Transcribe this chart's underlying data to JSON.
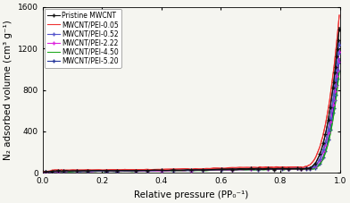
{
  "title": "",
  "xlabel": "Relative pressure (PP₀⁻¹)",
  "ylabel": "N₂ adsorbed volume (cm³ g⁻¹)",
  "xlim": [
    0.0,
    1.0
  ],
  "ylim": [
    0,
    1600
  ],
  "yticks": [
    0,
    400,
    800,
    1200,
    1600
  ],
  "xticks": [
    0.0,
    0.2,
    0.4,
    0.6,
    0.8,
    1.0
  ],
  "series": [
    {
      "label": "Pristine MWCNT",
      "color": "#111111",
      "linestyle": "-",
      "marker": "+",
      "markersize": 3,
      "linewidth": 0.8,
      "zorder": 6,
      "final_val": 1400,
      "base": 20,
      "mid": 40,
      "upturn": 0.88
    },
    {
      "label": "MWCNT/PEI-0.05",
      "color": "#ee3333",
      "linestyle": "-",
      "marker": "None",
      "markersize": 2,
      "linewidth": 0.8,
      "zorder": 5,
      "final_val": 1520,
      "base": 28,
      "mid": 55,
      "upturn": 0.87
    },
    {
      "label": "MWCNT/PEI-0.52",
      "color": "#5555cc",
      "linestyle": "-",
      "marker": "+",
      "markersize": 3,
      "linewidth": 0.8,
      "zorder": 4,
      "final_val": 1260,
      "base": 18,
      "mid": 45,
      "upturn": 0.89
    },
    {
      "label": "MWCNT/PEI-2.22",
      "color": "#dd22dd",
      "linestyle": "-",
      "marker": "+",
      "markersize": 3,
      "linewidth": 0.8,
      "zorder": 3,
      "final_val": 1180,
      "base": 16,
      "mid": 42,
      "upturn": 0.89
    },
    {
      "label": "MWCNT/PEI-4.50",
      "color": "#22aa22",
      "linestyle": "-",
      "marker": "None",
      "markersize": 2,
      "linewidth": 0.8,
      "zorder": 2,
      "final_val": 980,
      "base": 14,
      "mid": 38,
      "upturn": 0.9
    },
    {
      "label": "MWCNT/PEI-5.20",
      "color": "#223399",
      "linestyle": "-",
      "marker": "+",
      "markersize": 3,
      "linewidth": 0.8,
      "zorder": 1,
      "final_val": 1100,
      "base": 15,
      "mid": 40,
      "upturn": 0.9
    }
  ],
  "legend_fontsize": 5.5,
  "axis_fontsize": 7.5,
  "tick_fontsize": 6.5,
  "background_color": "#f5f5f0",
  "grid": false
}
